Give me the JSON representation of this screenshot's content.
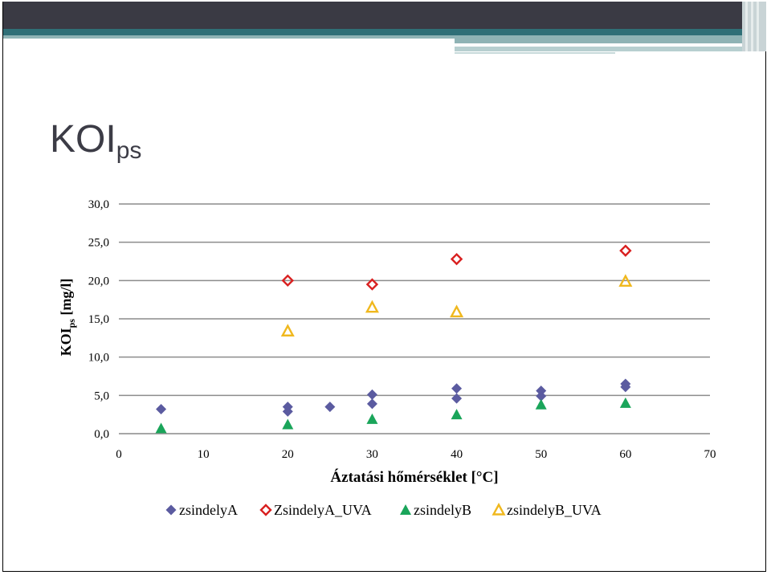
{
  "slide": {
    "title_main": "KOI",
    "title_sub": "ps"
  },
  "colors": {
    "zsindelyA": "#5b5ba0",
    "ZsindelyA_UVA": "#d92020",
    "zsindelyB": "#1aa55a",
    "zsindelyB_UVA": "#f0b81e"
  },
  "chart_data": {
    "type": "scatter",
    "title": "",
    "xlabel": "Áztatási hőmérséklet [°C]",
    "ylabel_main": "KOI",
    "ylabel_sub": "ps",
    "ylabel_unit": " [mg/l]",
    "xlim": [
      0,
      70
    ],
    "ylim": [
      0,
      30
    ],
    "x_ticks": [
      "0",
      "10",
      "20",
      "30",
      "40",
      "50",
      "60",
      "70"
    ],
    "x_tick_values": [
      0,
      10,
      20,
      30,
      40,
      50,
      60,
      70
    ],
    "y_ticks": [
      "0,0",
      "5,0",
      "10,0",
      "15,0",
      "20,0",
      "25,0",
      "30,0"
    ],
    "y_tick_values": [
      0,
      5,
      10,
      15,
      20,
      25,
      30
    ],
    "grid": "horizontal",
    "legend_position": "bottom",
    "series": [
      {
        "name": "zsindelyA",
        "marker": "filled-diamond",
        "points": [
          [
            5,
            3.2
          ],
          [
            20,
            3.5
          ],
          [
            20,
            2.9
          ],
          [
            25,
            3.5
          ],
          [
            30,
            5.1
          ],
          [
            30,
            3.9
          ],
          [
            40,
            5.9
          ],
          [
            40,
            4.6
          ],
          [
            50,
            5.6
          ],
          [
            50,
            4.9
          ],
          [
            60,
            6.5
          ],
          [
            60,
            6.1
          ]
        ]
      },
      {
        "name": "ZsindelyA_UVA",
        "marker": "open-diamond",
        "points": [
          [
            20,
            20.0
          ],
          [
            30,
            19.5
          ],
          [
            40,
            22.8
          ],
          [
            60,
            23.9
          ]
        ]
      },
      {
        "name": "zsindelyB",
        "marker": "filled-triangle",
        "points": [
          [
            5,
            0.7
          ],
          [
            20,
            1.2
          ],
          [
            30,
            1.9
          ],
          [
            40,
            2.5
          ],
          [
            50,
            3.8
          ],
          [
            60,
            4.0
          ]
        ]
      },
      {
        "name": "zsindelyB_UVA",
        "marker": "open-triangle",
        "points": [
          [
            20,
            13.4
          ],
          [
            30,
            16.5
          ],
          [
            40,
            15.9
          ],
          [
            60,
            19.9
          ]
        ]
      }
    ]
  }
}
